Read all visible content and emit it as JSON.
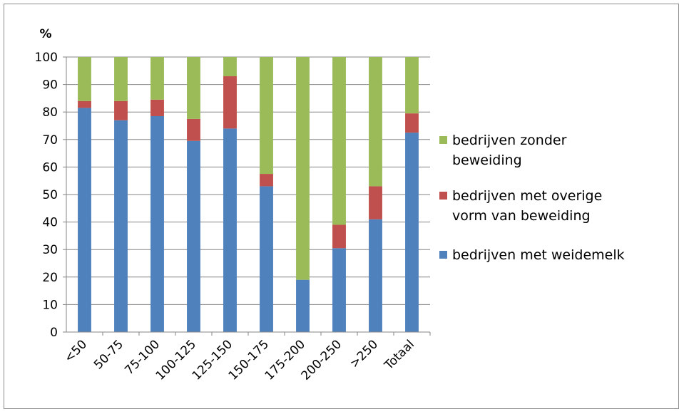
{
  "chart_data": {
    "type": "bar",
    "stacked": true,
    "unit_label": "%",
    "title": "",
    "xlabel": "",
    "ylabel": "",
    "ylim": [
      0,
      100
    ],
    "yticks": [
      0,
      10,
      20,
      30,
      40,
      50,
      60,
      70,
      80,
      90,
      100
    ],
    "grid": true,
    "legend_position": "right",
    "categories": [
      "<50",
      "50-75",
      "75-100",
      "100-125",
      "125-150",
      "150-175",
      "175-200",
      "200-250",
      ">250",
      "Totaal"
    ],
    "series": [
      {
        "name": "bedrijven met weidemelk",
        "color": "#4f81bd",
        "values": [
          81.5,
          77,
          78.5,
          69.5,
          74,
          53,
          19,
          30.5,
          41,
          72.5
        ]
      },
      {
        "name": "bedrijven met overige vorm van beweiding",
        "color": "#c0504d",
        "values": [
          2.5,
          7,
          6,
          8,
          19,
          4.5,
          0,
          8.5,
          12,
          7
        ]
      },
      {
        "name": "bedrijven zonder beweiding",
        "color": "#9bbb59",
        "values": [
          16,
          16,
          15.5,
          22.5,
          7,
          42.5,
          81,
          61,
          47,
          20.5
        ]
      }
    ],
    "legend": {
      "order": [
        2,
        1,
        0
      ],
      "entries": [
        {
          "series": 2,
          "lines": [
            "bedrijven zonder",
            "beweiding"
          ]
        },
        {
          "series": 1,
          "lines": [
            "bedrijven met overige",
            "vorm van beweiding"
          ]
        },
        {
          "series": 0,
          "lines": [
            "bedrijven met weidemelk"
          ]
        }
      ]
    }
  }
}
